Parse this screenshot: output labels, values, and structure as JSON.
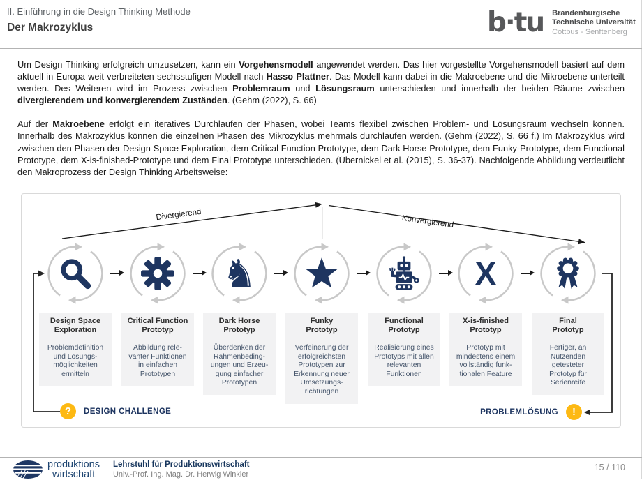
{
  "slide": {
    "header": {
      "section": "II. Einführung in die Design Thinking Methode",
      "title": "Der Makrozyklus"
    },
    "university_logo": {
      "wordmark": "b·tu",
      "name_line1": "Brandenburgische",
      "name_line2": "Technische Universität",
      "name_line3": "Cottbus - Senftenberg"
    },
    "body": {
      "paragraph1": [
        {
          "t": "Um Design Thinking erfolgreich umzusetzen, kann ein ",
          "b": false
        },
        {
          "t": "Vorgehensmodell",
          "b": true
        },
        {
          "t": " angewendet werden. Das hier vorgestellte Vorgehensmodell basiert auf dem aktuell in Europa weit verbreiteten sechsstufigen Modell nach ",
          "b": false
        },
        {
          "t": "Hasso Plattner",
          "b": true
        },
        {
          "t": ". Das Modell kann dabei in die Makroebene und die Mikroebene unterteilt werden. Des Weiteren wird im Prozess zwischen ",
          "b": false
        },
        {
          "t": "Problemraum",
          "b": true
        },
        {
          "t": " und ",
          "b": false
        },
        {
          "t": "Lösungsraum",
          "b": true
        },
        {
          "t": " unterschieden und innerhalb der beiden Räume zwischen ",
          "b": false
        },
        {
          "t": "divergierendem und konvergierendem Zuständen",
          "b": true
        },
        {
          "t": ". (Gehm (2022), S. 66)",
          "b": false
        }
      ],
      "paragraph2": [
        {
          "t": "Auf der ",
          "b": false
        },
        {
          "t": "Makroebene",
          "b": true
        },
        {
          "t": " erfolgt ein iteratives Durchlaufen der Phasen, wobei Teams flexibel zwischen Problem- und Lösungsraum wechseln können. Innerhalb des Makrozyklus können die einzelnen Phasen des Mikrozyklus mehrmals durchlaufen werden. (Gehm (2022), S. 66 f.) Im Makrozyklus wird zwischen den Phasen der Design Space Exploration, dem Critical Function Prototype, dem Dark Horse Prototype, dem Funky-Prototype, dem Functional Prototype, dem X-is-finished-Prototype und dem Final Prototype unterschieden. (Übernickel et al. (2015), S. 36-37). Nachfolgende Abbildung verdeutlicht den Makroprozess der Design Thinking Arbeitsweise:",
          "b": false
        }
      ]
    },
    "diagram": {
      "divergent_label": "Divergierend",
      "convergent_label": "Konvergierend",
      "phases": [
        {
          "icon": "magnifier-icon",
          "title": "Design Space\nExploration",
          "description": "Problemdefinition\nund Lösungs-\nmöglichkeiten\nermitteln"
        },
        {
          "icon": "gear-icon",
          "title": "Critical Function\nPrototyp",
          "description": "Abbildung rele-\nvanter Funktionen\nin einfachen\nPrototypen"
        },
        {
          "icon": "horse-icon",
          "title": "Dark Horse\nPrototyp",
          "description": "Überdenken der\nRahmenbeding-\nungen und Erzeu-\ngung einfacher\nPrototypen"
        },
        {
          "icon": "star-icon",
          "title": "Funky\nPrototyp",
          "description": "Verfeinerung der\nerfolgreichsten\nPrototypen zur\nErkennung neuer\nUmsetzungs-\nrichtungen"
        },
        {
          "icon": "robot-icon",
          "title": "Functional\nPrototyp",
          "description": "Realisierung eines\nPrototyps mit allen\nrelevanten\nFunktionen"
        },
        {
          "icon": "x-icon",
          "title": "X-is-finished\nPrototyp",
          "description": "Prototyp mit\nmindestens einem\nvollständig funk-\ntionalen Feature"
        },
        {
          "icon": "award-icon",
          "title": "Final\nPrototyp",
          "description": "Fertiger, an\nNutzenden\ngetesteter\nPrototyp für\nSerienreife"
        }
      ],
      "start": {
        "symbol": "?",
        "label": "DESIGN CHALLENGE"
      },
      "end": {
        "symbol": "!",
        "label": "PROBLEMLÖSUNG"
      }
    },
    "footer": {
      "chair_logo": {
        "line1": "produktions",
        "line2": "wirtschaft"
      },
      "chair_name": "Lehrstuhl für Produktionswirtschaft",
      "chair_head": "Univ.-Prof. Ing. Mag. Dr. Herwig Winkler",
      "page_indicator": "15 / 110"
    },
    "colors": {
      "navy": "#1e3560",
      "accent_yellow": "#fdb913",
      "cycle_gray": "#c8c8c8"
    }
  }
}
